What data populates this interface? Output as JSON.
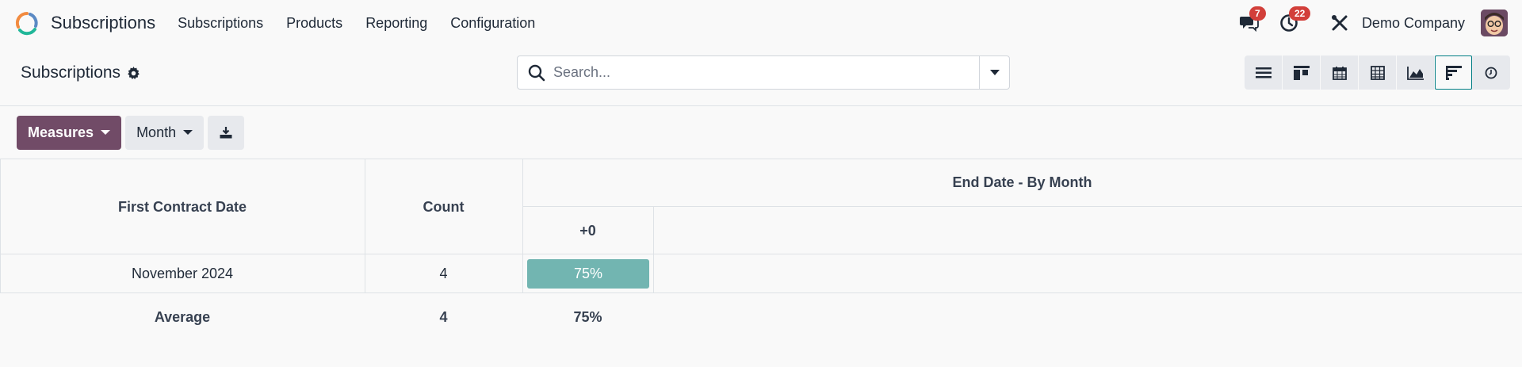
{
  "navbar": {
    "app_name": "Subscriptions",
    "menu": [
      "Subscriptions",
      "Products",
      "Reporting",
      "Configuration"
    ],
    "messages_count": "7",
    "activities_count": "22",
    "company": "Demo Company"
  },
  "control": {
    "breadcrumb": "Subscriptions",
    "search_placeholder": "Search...",
    "views": [
      "list-icon",
      "kanban-icon",
      "calendar-icon",
      "pivot-icon",
      "graph-icon",
      "cohort-icon",
      "activity-icon"
    ],
    "active_view": "cohort-icon"
  },
  "toolbar": {
    "measures_label": "Measures",
    "interval_label": "Month"
  },
  "cohort": {
    "row_header": "First Contract Date",
    "count_header": "Count",
    "group_header": "End Date - By Month",
    "interval_header": "+0",
    "rows": [
      {
        "label": "November 2024",
        "count": "4",
        "value": "75%"
      }
    ],
    "average": {
      "label": "Average",
      "count": "4",
      "value": "75%"
    }
  },
  "colors": {
    "primary": "#714b67",
    "cohort_cell": "#72b5b1",
    "badge": "#d23f3a",
    "active_view_border": "#017e84"
  }
}
